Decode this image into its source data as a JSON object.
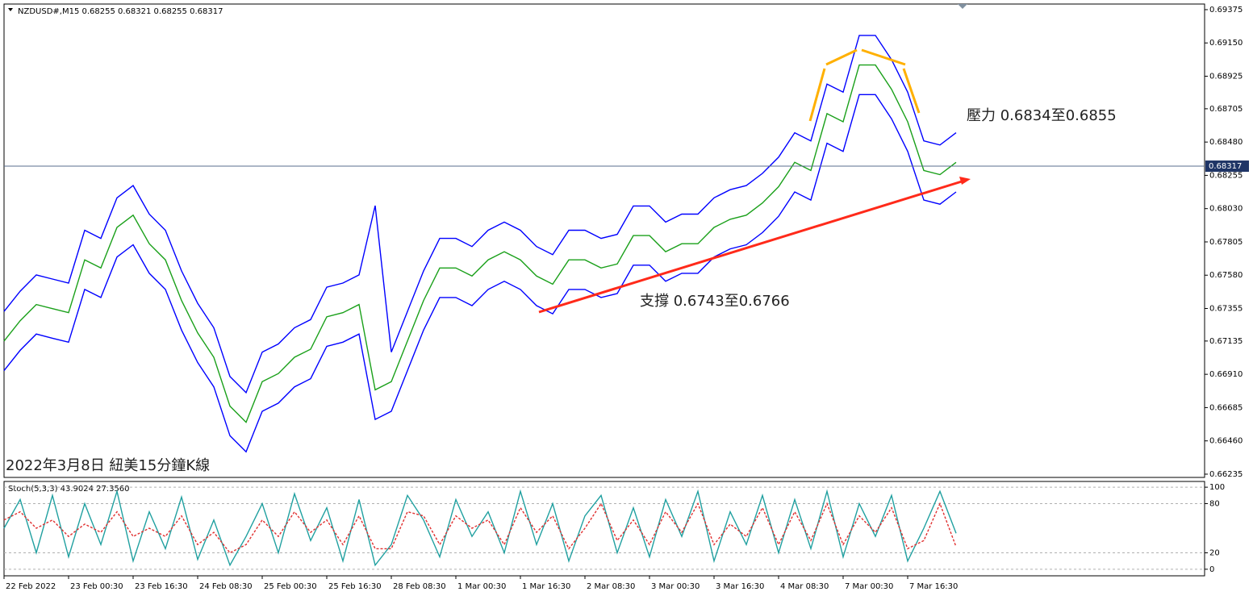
{
  "chart_data": [
    {
      "type": "line",
      "title": "NZDUSD#,M15  0.68255 0.68321 0.68255 0.68317",
      "annotations": [
        "壓力 0.6834至0.6855",
        "支撐 0.6743至0.6766",
        "2022年3月8日 紐美15分鐘K線"
      ],
      "current_price": 0.68317,
      "current_price_label": "0.68317",
      "x": [
        0,
        0.25,
        0.5,
        0.75,
        1,
        1.25,
        1.5,
        1.75,
        2,
        2.25,
        2.5,
        2.75,
        3,
        3.25,
        3.5,
        3.75,
        4,
        4.25,
        4.5,
        4.75,
        5,
        5.25,
        5.5,
        5.75,
        6,
        6.25,
        6.5,
        6.75,
        7,
        7.25,
        7.5,
        7.75,
        8,
        8.25,
        8.5,
        8.75,
        9,
        9.25,
        9.5,
        9.75,
        10,
        10.25,
        10.5,
        10.75,
        11,
        11.25,
        11.5,
        11.75,
        12,
        12.25,
        12.5,
        12.75,
        13,
        13.25,
        13.5,
        13.75,
        14,
        14.25,
        14.5,
        14.75
      ],
      "xlim": [
        0,
        18.6
      ],
      "xticks": [
        {
          "value": 0,
          "label": "22 Feb 2022"
        },
        {
          "value": 1,
          "label": "23 Feb 00:30"
        },
        {
          "value": 2,
          "label": "23 Feb 16:30"
        },
        {
          "value": 3,
          "label": "24 Feb 08:30"
        },
        {
          "value": 4,
          "label": "25 Feb 00:30"
        },
        {
          "value": 5,
          "label": "25 Feb 16:30"
        },
        {
          "value": 6,
          "label": "28 Feb 08:30"
        },
        {
          "value": 7,
          "label": "1 Mar 00:30"
        },
        {
          "value": 8,
          "label": "1 Mar 16:30"
        },
        {
          "value": 9,
          "label": "2 Mar 08:30"
        },
        {
          "value": 10,
          "label": "3 Mar 00:30"
        },
        {
          "value": 11,
          "label": "3 Mar 16:30"
        },
        {
          "value": 12,
          "label": "4 Mar 08:30"
        },
        {
          "value": 13,
          "label": "7 Mar 00:30"
        },
        {
          "value": 14,
          "label": "7 Mar 16:30"
        }
      ],
      "ylim": [
        0.66213,
        0.69413
      ],
      "yticks": [
        0.69375,
        {
          "value": 0.6915,
          "label": "0.69150"
        },
        0.68925,
        0.68705,
        {
          "value": 0.6848,
          "label": "0.68480"
        },
        0.68255,
        {
          "value": 0.6803,
          "label": "0.68030"
        },
        0.67805,
        {
          "value": 0.6758,
          "label": "0.67580"
        },
        0.67355,
        0.67135,
        {
          "value": 0.6691,
          "label": "0.66910"
        },
        0.66685,
        {
          "value": 0.6646,
          "label": "0.66460"
        },
        0.66235
      ],
      "grid": false,
      "series": [
        {
          "color": "#0000ff",
          "values": [
            0.67335,
            0.67472,
            0.67582,
            0.67554,
            0.67527,
            0.67884,
            0.67829,
            0.68103,
            0.68186,
            0.67993,
            0.67884,
            0.67609,
            0.6739,
            0.67225,
            0.66895,
            0.66786,
            0.6706,
            0.67115,
            0.67225,
            0.6728,
            0.67499,
            0.67527,
            0.67582,
            0.6805,
            0.6706,
            0.67335,
            0.67609,
            0.67829,
            0.67829,
            0.67774,
            0.67884,
            0.67939,
            0.67884,
            0.67774,
            0.67719,
            0.67884,
            0.67884,
            0.67829,
            0.67856,
            0.68048,
            0.68048,
            0.67939,
            0.67993,
            0.67993,
            0.68103,
            0.68158,
            0.68186,
            0.68268,
            0.68378,
            0.68543,
            0.68488,
            0.68872,
            0.68817,
            0.69201,
            0.69201,
            0.69037,
            0.68817,
            0.68488,
            0.6846,
            0.68543
          ]
        },
        {
          "color": "#0000ff",
          "values": [
            0.66935,
            0.67072,
            0.67182,
            0.67154,
            0.67127,
            0.67484,
            0.67429,
            0.67703,
            0.67786,
            0.67593,
            0.67484,
            0.67209,
            0.6699,
            0.66825,
            0.66495,
            0.66386,
            0.6666,
            0.66715,
            0.66825,
            0.6688,
            0.67099,
            0.67127,
            0.67182,
            0.66605,
            0.6666,
            0.66935,
            0.67209,
            0.67429,
            0.67429,
            0.67374,
            0.67484,
            0.67539,
            0.67484,
            0.67374,
            0.67319,
            0.67484,
            0.67484,
            0.67429,
            0.67456,
            0.67648,
            0.67648,
            0.67539,
            0.67593,
            0.67593,
            0.67703,
            0.67758,
            0.67786,
            0.67868,
            0.67978,
            0.68143,
            0.68088,
            0.68472,
            0.68417,
            0.68801,
            0.68801,
            0.68637,
            0.68417,
            0.68088,
            0.6806,
            0.68143
          ]
        },
        {
          "color": "#1aa01a",
          "values": [
            0.67135,
            0.67272,
            0.67382,
            0.67354,
            0.67327,
            0.67684,
            0.67629,
            0.67903,
            0.67986,
            0.67793,
            0.67684,
            0.67409,
            0.6719,
            0.67025,
            0.66695,
            0.66586,
            0.6686,
            0.66915,
            0.67025,
            0.6708,
            0.67299,
            0.67327,
            0.67382,
            0.66805,
            0.6686,
            0.67135,
            0.67409,
            0.67629,
            0.67629,
            0.67574,
            0.67684,
            0.67739,
            0.67684,
            0.67574,
            0.67519,
            0.67684,
            0.67684,
            0.67629,
            0.67656,
            0.67848,
            0.67848,
            0.67739,
            0.67793,
            0.67793,
            0.67903,
            0.67958,
            0.67986,
            0.68068,
            0.68178,
            0.68343,
            0.68288,
            0.68672,
            0.68617,
            0.69001,
            0.69001,
            0.68837,
            0.68617,
            0.68288,
            0.6826,
            0.68343
          ]
        }
      ]
    },
    {
      "type": "line",
      "title": "Stoch(5,3,3) 43.9024 27.3560",
      "x": [
        0,
        0.25,
        0.5,
        0.75,
        1,
        1.25,
        1.5,
        1.75,
        2,
        2.25,
        2.5,
        2.75,
        3,
        3.25,
        3.5,
        3.75,
        4,
        4.25,
        4.5,
        4.75,
        5,
        5.25,
        5.5,
        5.75,
        6,
        6.25,
        6.5,
        6.75,
        7,
        7.25,
        7.5,
        7.75,
        8,
        8.25,
        8.5,
        8.75,
        9,
        9.25,
        9.5,
        9.75,
        10,
        10.25,
        10.5,
        10.75,
        11,
        11.25,
        11.5,
        11.75,
        12,
        12.25,
        12.5,
        12.75,
        13,
        13.25,
        13.5,
        13.75,
        14,
        14.25,
        14.5,
        14.75
      ],
      "xlim": [
        0,
        18.6
      ],
      "ylim": [
        -8,
        107
      ],
      "yticks": [
        0,
        20,
        80,
        100
      ],
      "grid": true,
      "series": [
        {
          "color": "#20a0a0",
          "values": [
            50,
            85,
            20,
            90,
            15,
            80,
            30,
            95,
            10,
            70,
            25,
            88,
            12,
            60,
            5,
            40,
            80,
            20,
            92,
            35,
            75,
            10,
            85,
            5,
            30,
            90,
            60,
            15,
            85,
            40,
            70,
            20,
            95,
            30,
            80,
            10,
            65,
            90,
            20,
            75,
            15,
            85,
            40,
            95,
            10,
            70,
            30,
            90,
            20,
            85,
            25,
            95,
            15,
            80,
            40,
            90,
            10,
            50,
            95,
            43.9024
          ]
        },
        {
          "color": "#e03030",
          "dashed": true,
          "values": [
            60,
            70,
            50,
            60,
            40,
            55,
            45,
            70,
            40,
            50,
            40,
            65,
            30,
            45,
            20,
            30,
            60,
            40,
            70,
            45,
            60,
            30,
            65,
            25,
            25,
            70,
            65,
            30,
            65,
            50,
            60,
            30,
            75,
            45,
            65,
            25,
            50,
            80,
            35,
            60,
            30,
            70,
            45,
            80,
            30,
            55,
            40,
            75,
            30,
            70,
            35,
            80,
            30,
            65,
            45,
            75,
            25,
            35,
            80,
            27.356
          ]
        }
      ]
    }
  ]
}
